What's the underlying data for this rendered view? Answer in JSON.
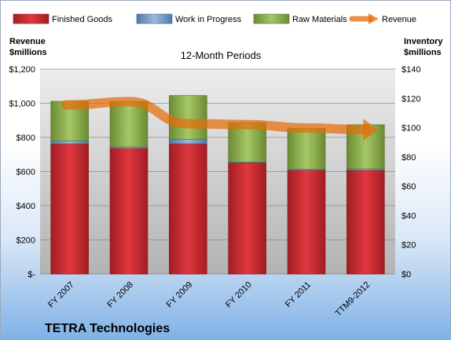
{
  "chart_data": {
    "type": "bar",
    "subtitle": "12-Month Periods",
    "company": "TETRA Technologies",
    "left_axis_title": [
      "Revenue",
      "$millions"
    ],
    "right_axis_title": [
      "Inventory",
      "$millions"
    ],
    "categories": [
      "FY 2007",
      "FY 2008",
      "FY 2009",
      "FY 2010",
      "FY 2011",
      "TTM9-2012"
    ],
    "stacked_series": [
      {
        "name": "Finished Goods",
        "color": "#c0272d",
        "values": [
          89,
          86,
          89,
          76,
          71,
          71
        ]
      },
      {
        "name": "Work in Progress",
        "color": "#4f81bd",
        "values": [
          2,
          1,
          3,
          0.5,
          0.5,
          1
        ]
      },
      {
        "name": "Raw Materials",
        "color": "#77933c",
        "values": [
          27,
          31,
          30,
          27,
          28,
          30
        ]
      }
    ],
    "line_series": {
      "name": "Revenue",
      "color": "#e46c0a",
      "values": [
        990,
        1010,
        880,
        875,
        855,
        845
      ]
    },
    "left_axis": {
      "min": 0,
      "max": 1200,
      "step": 200,
      "ticks": [
        "$-",
        "$200",
        "$400",
        "$600",
        "$800",
        "$1,000",
        "$1,200"
      ]
    },
    "right_axis": {
      "min": 0,
      "max": 140,
      "step": 20,
      "ticks": [
        "$0",
        "$20",
        "$40",
        "$60",
        "$80",
        "$100",
        "$120",
        "$140"
      ]
    },
    "legend_position": "top",
    "grid": true
  }
}
